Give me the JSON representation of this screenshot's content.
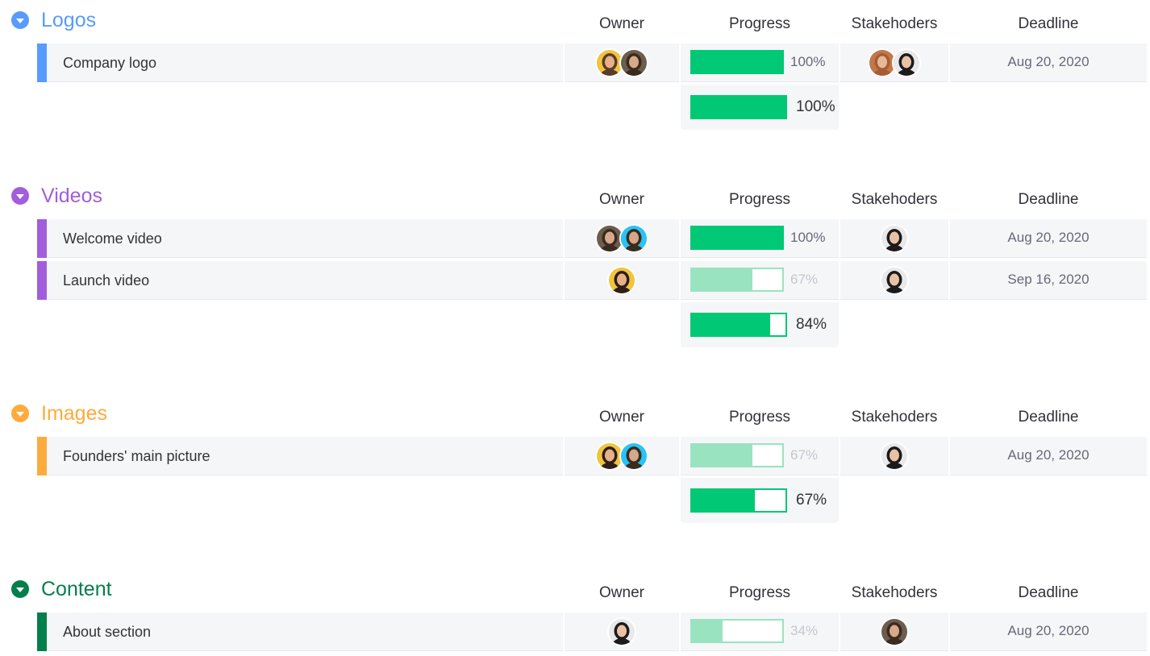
{
  "columns": {
    "owner": "Owner",
    "progress": "Progress",
    "stakeholders": "Stakehoders",
    "deadline": "Deadline"
  },
  "groups": [
    {
      "title": "Logos",
      "color": "#579bfc",
      "icon": "chevron-down-icon",
      "items": [
        {
          "name": "Company logo",
          "owners": [
            {
              "person": "woman-smiling",
              "bg": "#f2c43d",
              "skin": "#e6b08b",
              "hair": "#5a3c2a"
            },
            {
              "person": "man-bearded",
              "bg": "#6c5d4f",
              "skin": "#d7a98a",
              "hair": "#3a2b1f"
            }
          ],
          "progress": 1.0,
          "progress_label": "100%",
          "stakeholders": [
            {
              "person": "curly-hair",
              "bg": "#c2784a",
              "skin": "#e8b89a",
              "hair": "#a55e34"
            },
            {
              "person": "woman-dark-hair",
              "bg": "#e9e9ea",
              "skin": "#e9c2a6",
              "hair": "#1c1a1a"
            }
          ],
          "deadline": "Aug 20, 2020"
        }
      ],
      "summary": {
        "progress": 1.0,
        "label": "100%"
      }
    },
    {
      "title": "Videos",
      "color": "#a25ddc",
      "icon": "chevron-down-icon",
      "items": [
        {
          "name": "Welcome video",
          "owners": [
            {
              "person": "man-bearded",
              "bg": "#6c5d4f",
              "skin": "#d7a98a",
              "hair": "#3a2b1f"
            },
            {
              "person": "man-cyan-bg",
              "bg": "#27c4f5",
              "skin": "#d6a788",
              "hair": "#3a2b1f"
            }
          ],
          "progress": 1.0,
          "progress_label": "100%",
          "stakeholders": [
            {
              "person": "woman-dark-hair",
              "bg": "#e9e9ea",
              "skin": "#e9c2a6",
              "hair": "#1c1a1a"
            }
          ],
          "deadline": "Aug 20, 2020"
        },
        {
          "name": "Launch video",
          "owners": [
            {
              "person": "woman-yellow-bg",
              "bg": "#f2c43d",
              "skin": "#e6b08b",
              "hair": "#2c1f18"
            }
          ],
          "progress": 0.67,
          "progress_label": "67%",
          "stakeholders": [
            {
              "person": "woman-dark-hair",
              "bg": "#e9e9ea",
              "skin": "#e9c2a6",
              "hair": "#1c1a1a"
            }
          ],
          "deadline": "Sep 16, 2020"
        }
      ],
      "summary": {
        "progress": 0.84,
        "label": "84%"
      }
    },
    {
      "title": "Images",
      "color": "#fdab3d",
      "icon": "chevron-down-icon",
      "items": [
        {
          "name": "Founders' main picture",
          "owners": [
            {
              "person": "woman-yellow-bg",
              "bg": "#f2c43d",
              "skin": "#e6b08b",
              "hair": "#2c1f18"
            },
            {
              "person": "man-cyan-bg",
              "bg": "#27c4f5",
              "skin": "#d6a788",
              "hair": "#3a2b1f"
            }
          ],
          "progress": 0.67,
          "progress_label": "67%",
          "stakeholders": [
            {
              "person": "woman-dark-hair",
              "bg": "#e9e9ea",
              "skin": "#e9c2a6",
              "hair": "#1c1a1a"
            }
          ],
          "deadline": "Aug 20, 2020"
        }
      ],
      "summary": {
        "progress": 0.67,
        "label": "67%"
      }
    },
    {
      "title": "Content",
      "color": "#037f4c",
      "icon": "chevron-down-icon",
      "items": [
        {
          "name": "About section",
          "owners": [
            {
              "person": "woman-dark-hair",
              "bg": "#e9e9ea",
              "skin": "#e9c2a6",
              "hair": "#1c1a1a"
            }
          ],
          "progress": 0.34,
          "progress_label": "34%",
          "stakeholders": [
            {
              "person": "man-bearded",
              "bg": "#6c5d4f",
              "skin": "#d7a98a",
              "hair": "#3a2b1f"
            }
          ],
          "deadline": "Aug 20, 2020"
        }
      ],
      "summary": null
    }
  ]
}
